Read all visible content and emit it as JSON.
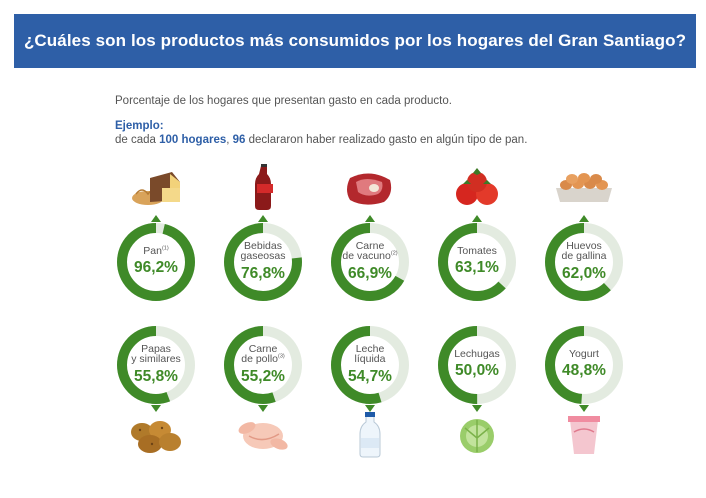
{
  "header": {
    "title": "¿Cuáles son los productos más consumidos por los hogares del Gran Santiago?"
  },
  "intro": {
    "subtitle": "Porcentaje de los hogares que presentan gasto en cada producto.",
    "example_label": "Ejemplo:",
    "example_prefix": "de cada ",
    "example_households": "100 hogares",
    "example_sep": ", ",
    "example_count": "96",
    "example_suffix": " declararon haber realizado gasto en algún tipo de pan."
  },
  "colors": {
    "banner": "#2e5fa7",
    "ring_fill": "#3f8a28",
    "ring_track": "#e3ebe0",
    "value_text": "#3f8a28"
  },
  "chart_data": {
    "type": "donut-grid",
    "title": "¿Cuáles son los productos más consumidos por los hogares del Gran Santiago?",
    "unit": "%",
    "items": [
      {
        "label": [
          "Pan"
        ],
        "note": "(1)",
        "value": 96.2,
        "display": "96,2%",
        "icon": "bread-icon"
      },
      {
        "label": [
          "Bebidas",
          "gaseosas"
        ],
        "note": "",
        "value": 76.8,
        "display": "76,8%",
        "icon": "soda-bottle-icon"
      },
      {
        "label": [
          "Carne",
          "de vacuno"
        ],
        "note": "(2)",
        "value": 66.9,
        "display": "66,9%",
        "icon": "beef-icon"
      },
      {
        "label": [
          "Tomates"
        ],
        "note": "",
        "value": 63.1,
        "display": "63,1%",
        "icon": "tomato-icon"
      },
      {
        "label": [
          "Huevos",
          "de gallina"
        ],
        "note": "",
        "value": 62.0,
        "display": "62,0%",
        "icon": "egg-carton-icon"
      },
      {
        "label": [
          "Papas",
          "y similares"
        ],
        "note": "",
        "value": 55.8,
        "display": "55,8%",
        "icon": "potato-icon"
      },
      {
        "label": [
          "Carne",
          "de pollo"
        ],
        "note": "(3)",
        "value": 55.2,
        "display": "55,2%",
        "icon": "chicken-icon"
      },
      {
        "label": [
          "Leche",
          "líquida"
        ],
        "note": "",
        "value": 54.7,
        "display": "54,7%",
        "icon": "milk-bottle-icon"
      },
      {
        "label": [
          "Lechugas"
        ],
        "note": "",
        "value": 50.0,
        "display": "50,0%",
        "icon": "lettuce-icon"
      },
      {
        "label": [
          "Yogurt"
        ],
        "note": "",
        "value": 48.8,
        "display": "48,8%",
        "icon": "yogurt-cup-icon"
      }
    ]
  }
}
